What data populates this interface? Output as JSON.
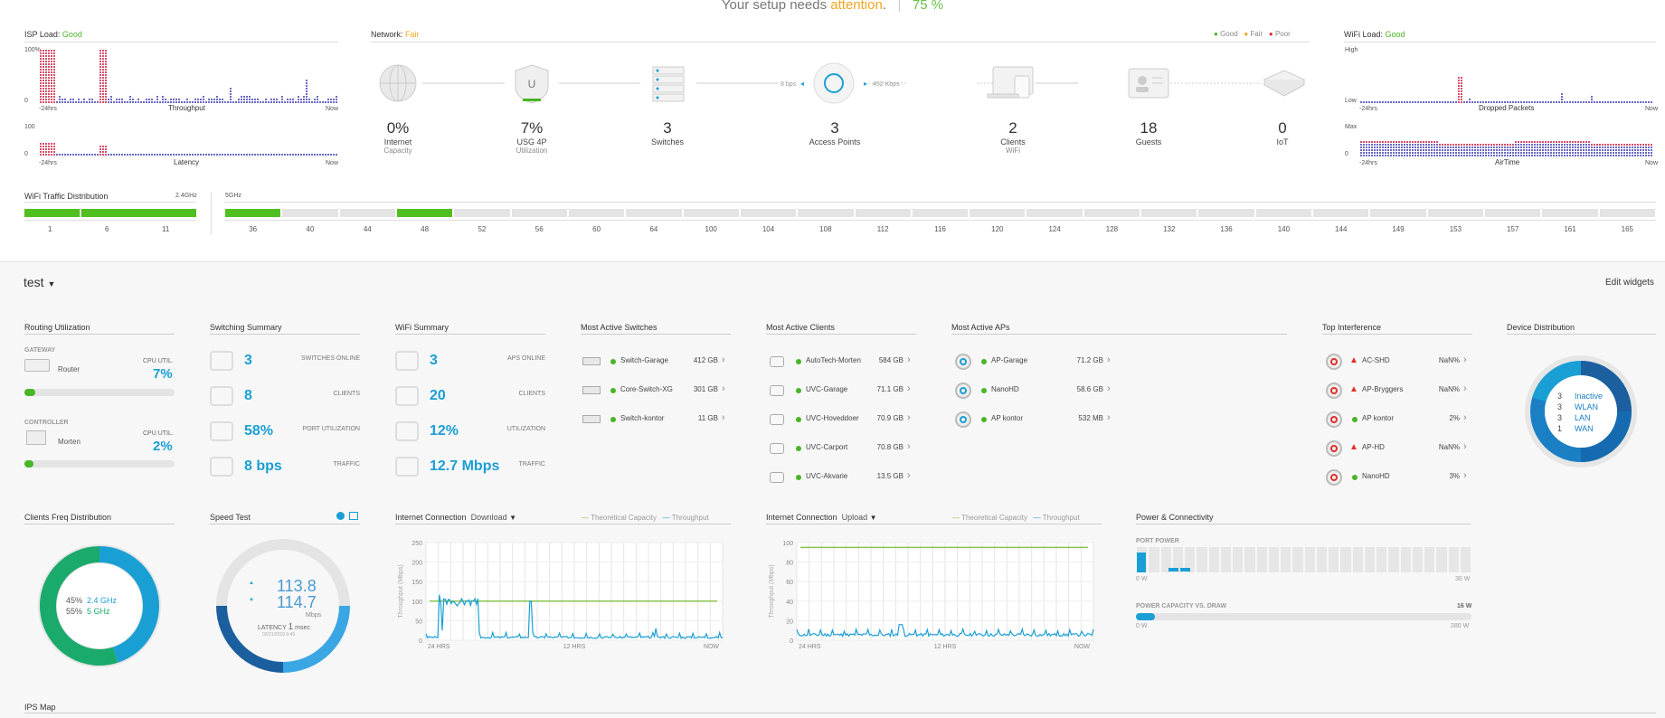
{
  "banner": {
    "prefix": "Your setup needs",
    "attention": "attention",
    "suffix": ".",
    "sep": "|",
    "pct": "75 %"
  },
  "isp": {
    "title": "ISP Load:",
    "status": "Good",
    "throughput": "Throughput",
    "latency": "Latency",
    "y_top": "100%",
    "y_zero": "0",
    "lat_top": "100",
    "lat_zero": "0",
    "start": "-24hrs",
    "end": "Now"
  },
  "network": {
    "title": "Network:",
    "status": "Fair",
    "legend_good": "Good",
    "legend_fair": "Fair",
    "legend_poor": "Poor",
    "speed_left": "8 bps",
    "speed_right": "452 Kbps",
    "nodes": [
      {
        "value": "0%",
        "label": "Internet",
        "sub": "Capacity"
      },
      {
        "value": "7%",
        "label": "USG 4P",
        "sub": "Utilization"
      },
      {
        "value": "3",
        "label": "Switches",
        "sub": ""
      },
      {
        "value": "3",
        "label": "Access Points",
        "sub": ""
      },
      {
        "value": "2",
        "label": "Clients",
        "sub": "WiFi"
      },
      {
        "value": "18",
        "label": "Guests",
        "sub": ""
      },
      {
        "value": "0",
        "label": "IoT",
        "sub": ""
      }
    ]
  },
  "wifi_load": {
    "title": "WiFi Load:",
    "status": "Good",
    "high": "High",
    "low": "Low",
    "max": "Max",
    "zero": "0",
    "dropped": "Dropped Packets",
    "airtime": "AirTime",
    "start": "-24hrs",
    "end": "Now"
  },
  "traffic": {
    "title": "WiFi Traffic Distribution",
    "band24": "2.4GHz",
    "band5": "5GHz",
    "ch24": [
      "1",
      "6",
      "11"
    ],
    "ch5": [
      "36",
      "40",
      "44",
      "48",
      "52",
      "56",
      "60",
      "64",
      "100",
      "104",
      "108",
      "112",
      "116",
      "120",
      "124",
      "128",
      "132",
      "136",
      "140",
      "144",
      "149",
      "153",
      "157",
      "161",
      "165"
    ]
  },
  "site": {
    "name": "test",
    "edit": "Edit widgets"
  },
  "routing": {
    "title": "Routing Utilization",
    "gw_label": "GATEWAY",
    "gw_name": "Router",
    "gw_cpu_lbl": "CPU UTIL.",
    "gw_cpu": "7%",
    "ctrl_label": "CONTROLLER",
    "ctrl_name": "Morten",
    "ctrl_cpu_lbl": "CPU UTIL.",
    "ctrl_cpu": "2%",
    "gw_cpu_fraction": 0.07,
    "ctrl_cpu_fraction": 0.02
  },
  "switching": {
    "title": "Switching Summary",
    "rows": [
      {
        "value": "3",
        "label": "SWITCHES ONLINE"
      },
      {
        "value": "8",
        "label": "CLIENTS"
      },
      {
        "value": "58%",
        "label": "PORT UTILIZATION"
      },
      {
        "value": "8 bps",
        "label": "TRAFFIC"
      }
    ]
  },
  "wifi_summary": {
    "title": "WiFi Summary",
    "rows": [
      {
        "value": "3",
        "label": "APS ONLINE"
      },
      {
        "value": "20",
        "label": "CLIENTS"
      },
      {
        "value": "12%",
        "label": "UTILIZATION"
      },
      {
        "value": "12.7 Mbps",
        "label": "TRAFFIC"
      }
    ]
  },
  "active_switches": {
    "title": "Most Active Switches",
    "rows": [
      {
        "name": "Switch-Garage",
        "value": "412 GB"
      },
      {
        "name": "Core-Switch-XG",
        "value": "301 GB"
      },
      {
        "name": "Switch-kontor",
        "value": "11 GB"
      }
    ]
  },
  "active_clients": {
    "title": "Most Active Clients",
    "rows": [
      {
        "name": "AutoTech-Morten",
        "value": "584 GB"
      },
      {
        "name": "UVC-Garage",
        "value": "71.1 GB"
      },
      {
        "name": "UVC-Hoveddoer",
        "value": "70.9 GB"
      },
      {
        "name": "UVC-Carport",
        "value": "70.8 GB"
      },
      {
        "name": "UVC-Akvarie",
        "value": "13.5 GB"
      }
    ]
  },
  "active_aps": {
    "title": "Most Active APs",
    "rows": [
      {
        "name": "AP-Garage",
        "value": "71.2 GB"
      },
      {
        "name": "NanoHD",
        "value": "58.6 GB"
      },
      {
        "name": "AP kontor",
        "value": "532 MB"
      }
    ]
  },
  "interference": {
    "title": "Top Interference",
    "rows": [
      {
        "name": "AC-SHD",
        "value": "NaN%",
        "status": "warn"
      },
      {
        "name": "AP-Bryggers",
        "value": "NaN%",
        "status": "warn"
      },
      {
        "name": "AP kontor",
        "value": "2%",
        "status": "ok"
      },
      {
        "name": "AP-HD",
        "value": "NaN%",
        "status": "warn"
      },
      {
        "name": "NanoHD",
        "value": "3%",
        "status": "ok"
      }
    ]
  },
  "device_dist": {
    "title": "Device Distribution",
    "rows": [
      {
        "count": "3",
        "label": "Inactive"
      },
      {
        "count": "3",
        "label": "WLAN"
      },
      {
        "count": "3",
        "label": "LAN"
      },
      {
        "count": "1",
        "label": "WAN"
      }
    ]
  },
  "freq": {
    "title": "Clients Freq Distribution",
    "pct24": "45%",
    "lbl24": "2.4 GHz",
    "pct5": "55%",
    "lbl5": "5 GHz",
    "share24": 0.45,
    "share5": 0.55
  },
  "speed": {
    "title": "Speed Test",
    "down": "113.8",
    "up": "114.7",
    "unit": "Mbps",
    "latency_lbl": "LATENCY",
    "latency": "1",
    "latency_unit": "msec",
    "date": "02/21/2019 9:49"
  },
  "inet_down": {
    "title": "Internet Connection",
    "mode": "Download",
    "legend_cap": "Theoretical Capacity",
    "legend_tp": "Throughput",
    "ylabel": "Throughput (Mbps)",
    "yticks": [
      "250",
      "200",
      "150",
      "100",
      "50",
      "0"
    ],
    "xticks": [
      "24 HRS",
      "12 HRS",
      "NOW"
    ]
  },
  "inet_up": {
    "title": "Internet Connection",
    "mode": "Upload",
    "legend_cap": "Theoretical Capacity",
    "legend_tp": "Throughput",
    "ylabel": "Throughput (Mbps)",
    "yticks": [
      "100",
      "80",
      "60",
      "40",
      "20",
      "0"
    ],
    "xticks": [
      "24 HRS",
      "12 HRS",
      "NOW"
    ]
  },
  "power": {
    "title": "Power & Connectivity",
    "port_power": "PORT POWER",
    "pp_min": "0 W",
    "pp_max": "30 W",
    "cap_title": "POWER CAPACITY VS. DRAW",
    "cap_value": "16 W",
    "cap_min": "0 W",
    "cap_max": "280 W",
    "draw_fraction": 0.057
  },
  "ips": {
    "title": "IPS Map"
  },
  "colors": {
    "blue": "#1a9fd4",
    "green": "#49b527",
    "orange": "#f2a61f",
    "red": "#e0302c",
    "navy": "#1b5f9e"
  }
}
